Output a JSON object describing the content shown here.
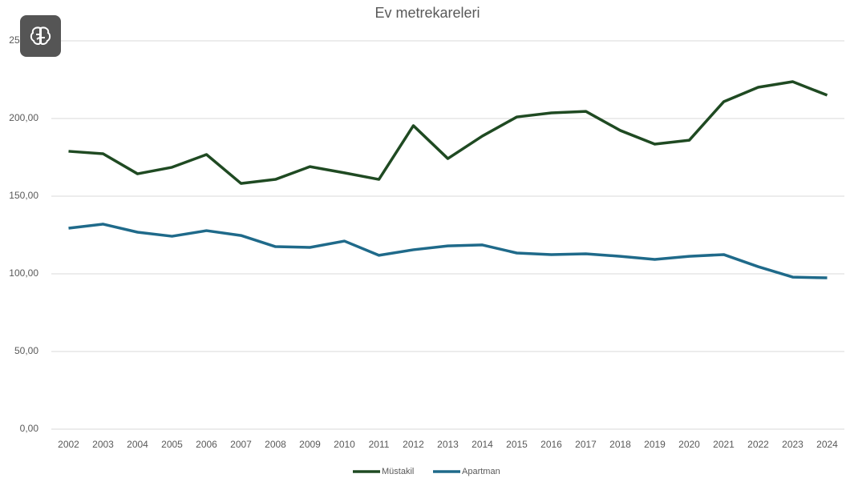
{
  "chart_data": {
    "type": "line",
    "title": "Ev metrekareleri",
    "categories": [
      "2002",
      "2003",
      "2004",
      "2005",
      "2006",
      "2007",
      "2008",
      "2009",
      "2010",
      "2011",
      "2012",
      "2013",
      "2014",
      "2015",
      "2016",
      "2017",
      "2018",
      "2019",
      "2020",
      "2021",
      "2022",
      "2023",
      "2024"
    ],
    "series": [
      {
        "name": "Müstakil",
        "color": "#1f4a22",
        "values": [
          178.9,
          177.3,
          164.4,
          168.6,
          176.8,
          158.2,
          160.8,
          169,
          165,
          160.8,
          195.4,
          174.2,
          188.7,
          201,
          203.6,
          204.6,
          192.3,
          183.5,
          186,
          210.8,
          220.1,
          223.7,
          215
        ]
      },
      {
        "name": "Apartman",
        "color": "#1f6a8a",
        "values": [
          129.4,
          132,
          126.8,
          124.2,
          127.8,
          124.7,
          117.5,
          117,
          121.1,
          111.9,
          115.5,
          118,
          118.6,
          113.4,
          112.4,
          112.9,
          111.3,
          109.3,
          111.3,
          112.4,
          104.6,
          97.9,
          97.4
        ]
      }
    ],
    "ylim": [
      0,
      250
    ],
    "yticks": [
      {
        "value": 0,
        "label": "0,00"
      },
      {
        "value": 50,
        "label": "50,00"
      },
      {
        "value": 100,
        "label": "100,00"
      },
      {
        "value": 150,
        "label": "150,00"
      },
      {
        "value": 200,
        "label": "200,00"
      },
      {
        "value": 250,
        "label": "250,00"
      }
    ],
    "grid": true,
    "legend": "bottom"
  }
}
